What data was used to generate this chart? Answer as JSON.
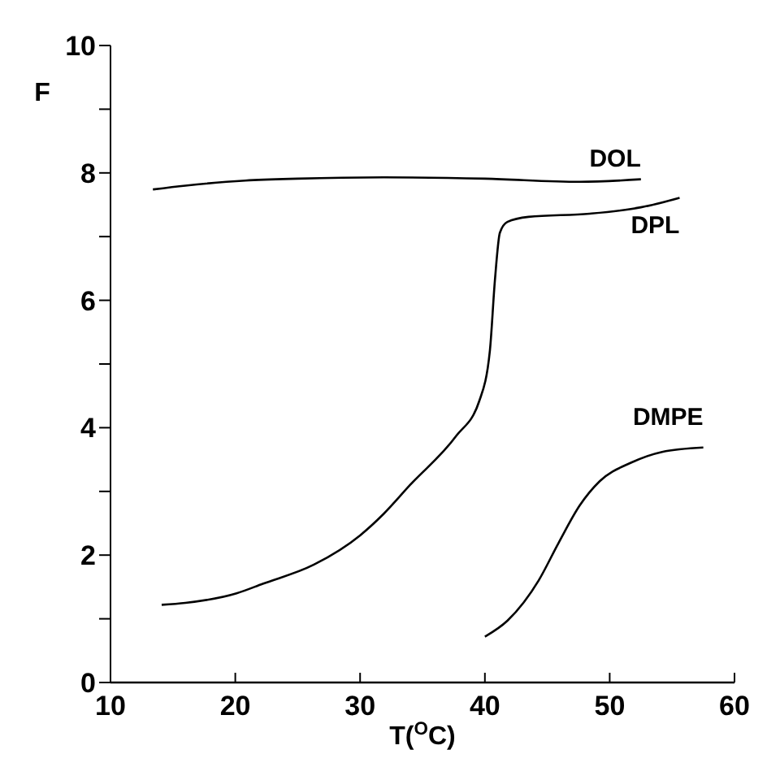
{
  "chart_data": {
    "type": "line",
    "xlabel": "T($^{O}$C)",
    "ylabel": "F",
    "xlim": [
      10,
      60
    ],
    "xticks": [
      10,
      20,
      30,
      40,
      50,
      60
    ],
    "ylim": [
      0,
      10
    ],
    "yticks": [
      0,
      {
        "value": 1,
        "label": null
      },
      2,
      {
        "value": 3,
        "label": null
      },
      4,
      {
        "value": 5,
        "label": null
      },
      6,
      {
        "value": 7,
        "label": null
      },
      8,
      {
        "value": 9,
        "label": null
      },
      10
    ],
    "grid": false,
    "legend": false,
    "marker": "none",
    "line_style": "solid",
    "series": [
      {
        "name": "DOL",
        "color": "#000000",
        "x": [
          13.4,
          16,
          20.8,
          25,
          31.9,
          40,
          47.6,
          52.5
        ],
        "values": [
          7.74,
          7.8,
          7.88,
          7.91,
          7.93,
          7.91,
          7.86,
          7.9
        ]
      },
      {
        "name": "DPL",
        "color": "#000000",
        "x": [
          14.1,
          16,
          20.1,
          22.2,
          26.3,
          30,
          31.9,
          34,
          37.7,
          39.55,
          40.4,
          40.8,
          41.2,
          41.8,
          43.5,
          48.4,
          52.5,
          55.6
        ],
        "values": [
          1.22,
          1.25,
          1.4,
          1.55,
          1.85,
          2.31,
          2.65,
          3.1,
          3.87,
          4.42,
          5.21,
          6.31,
          7.06,
          7.23,
          7.31,
          7.36,
          7.46,
          7.61
        ]
      },
      {
        "name": "DMPE",
        "color": "#000000",
        "x": [
          40,
          41.8,
          44.3,
          45.9,
          47.6,
          49.2,
          51.7,
          54.2,
          57.5
        ],
        "values": [
          0.72,
          0.97,
          1.6,
          2.19,
          2.78,
          3.16,
          3.45,
          3.62,
          3.69
        ]
      }
    ]
  }
}
